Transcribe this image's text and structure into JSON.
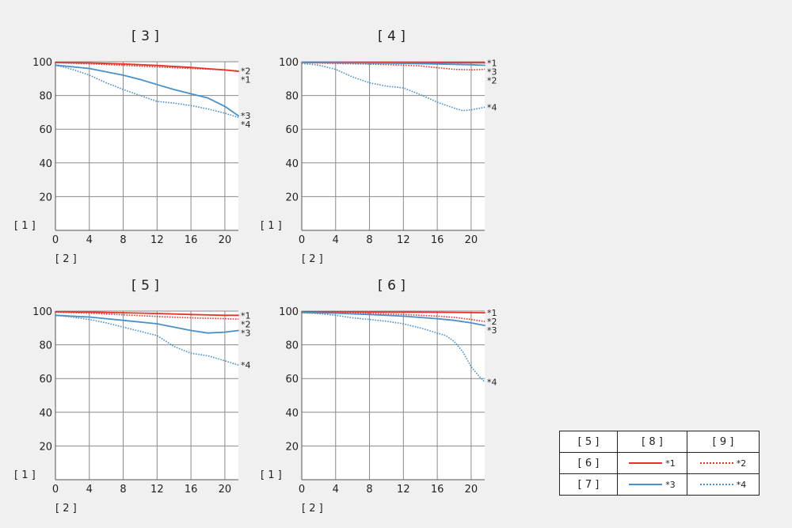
{
  "chart_data": [
    {
      "type": "line",
      "title": "[ 3 ]",
      "ylabel": "[ 1 ]",
      "xlabel": "[ 2 ]",
      "xlim": [
        0,
        21.6
      ],
      "ylim": [
        0,
        100
      ],
      "xticks": [
        "0",
        "4",
        "8",
        "12",
        "16",
        "20"
      ],
      "yticks": [
        "20",
        "40",
        "60",
        "80",
        "100"
      ],
      "grid": true,
      "series": [
        {
          "name": "*1",
          "style": "solid",
          "color": "#e8332b",
          "x": [
            0,
            4,
            8,
            12,
            16,
            20,
            21.6
          ],
          "y": [
            99.5,
            99.3,
            98.7,
            97.8,
            96.6,
            95.1,
            94.3
          ]
        },
        {
          "name": "*2",
          "style": "dotted",
          "color": "#e8332b",
          "x": [
            0,
            4,
            8,
            12,
            16,
            20,
            21.6
          ],
          "y": [
            99.5,
            98.8,
            97.9,
            96.9,
            96.0,
            95.2,
            94.6
          ]
        },
        {
          "name": "*3",
          "style": "solid",
          "color": "#4a90c8",
          "x": [
            0,
            2,
            4,
            6,
            8,
            10,
            12,
            14,
            16,
            18,
            20,
            21.6
          ],
          "y": [
            98.0,
            97.0,
            96.0,
            94.0,
            92.0,
            89.5,
            86.5,
            83.5,
            81.0,
            78.5,
            73.5,
            68.0
          ]
        },
        {
          "name": "*4",
          "style": "dotted",
          "color": "#4a90c8",
          "x": [
            0,
            2,
            4,
            6,
            8,
            10,
            12,
            14,
            16,
            18,
            20,
            21.6
          ],
          "y": [
            98.0,
            95.5,
            92.0,
            87.5,
            83.5,
            80.0,
            76.5,
            75.5,
            74.0,
            72.0,
            69.5,
            67.0
          ]
        }
      ]
    },
    {
      "type": "line",
      "title": "[ 4 ]",
      "ylabel": "[ 1 ]",
      "xlabel": "[ 2 ]",
      "xlim": [
        0,
        21.6
      ],
      "ylim": [
        0,
        100
      ],
      "xticks": [
        "0",
        "4",
        "8",
        "12",
        "16",
        "20"
      ],
      "yticks": [
        "20",
        "40",
        "60",
        "80",
        "100"
      ],
      "grid": true,
      "series": [
        {
          "name": "*1",
          "style": "solid",
          "color": "#e8332b",
          "x": [
            0,
            4,
            8,
            12,
            16,
            20,
            21.6
          ],
          "y": [
            99.6,
            99.6,
            99.6,
            99.5,
            99.5,
            99.4,
            99.4
          ]
        },
        {
          "name": "*2",
          "style": "dotted",
          "color": "#e8332b",
          "x": [
            0,
            4,
            8,
            12,
            14,
            16,
            18,
            20,
            21.6
          ],
          "y": [
            99.4,
            99.0,
            98.6,
            98.0,
            97.5,
            96.5,
            95.5,
            95.2,
            95.5
          ]
        },
        {
          "name": "*3",
          "style": "solid",
          "color": "#4a90c8",
          "x": [
            0,
            4,
            8,
            12,
            16,
            20,
            21.6
          ],
          "y": [
            99.6,
            99.4,
            99.2,
            99.0,
            98.7,
            98.2,
            97.9
          ]
        },
        {
          "name": "*4",
          "style": "dotted",
          "color": "#4a90c8",
          "x": [
            0,
            2,
            4,
            6,
            8,
            10,
            12,
            14,
            16,
            18,
            19,
            20,
            21.6
          ],
          "y": [
            99.0,
            98.0,
            95.5,
            91.0,
            87.5,
            85.5,
            84.5,
            80.5,
            76.0,
            72.5,
            71.0,
            71.5,
            73.0
          ]
        }
      ]
    },
    {
      "type": "line",
      "title": "[ 5 ]",
      "ylabel": "[ 1 ]",
      "xlabel": "[ 2 ]",
      "xlim": [
        0,
        21.6
      ],
      "ylim": [
        0,
        100
      ],
      "xticks": [
        "0",
        "4",
        "8",
        "12",
        "16",
        "20"
      ],
      "yticks": [
        "20",
        "40",
        "60",
        "80",
        "100"
      ],
      "grid": true,
      "series": [
        {
          "name": "*1",
          "style": "solid",
          "color": "#e8332b",
          "x": [
            0,
            4,
            8,
            12,
            16,
            20,
            21.6
          ],
          "y": [
            99.6,
            99.4,
            99.0,
            98.6,
            98.0,
            97.5,
            97.5
          ]
        },
        {
          "name": "*2",
          "style": "dotted",
          "color": "#e8332b",
          "x": [
            0,
            4,
            8,
            12,
            16,
            20,
            21.6
          ],
          "y": [
            99.4,
            98.8,
            97.8,
            96.8,
            96.0,
            95.5,
            95.2
          ]
        },
        {
          "name": "*3",
          "style": "solid",
          "color": "#4a90c8",
          "x": [
            0,
            4,
            8,
            12,
            14,
            16,
            18,
            20,
            21.6
          ],
          "y": [
            97.5,
            96.5,
            94.5,
            92.5,
            90.5,
            88.5,
            87.0,
            87.5,
            88.5
          ]
        },
        {
          "name": "*4",
          "style": "dotted",
          "color": "#4a90c8",
          "x": [
            0,
            2,
            4,
            6,
            8,
            10,
            12,
            14,
            16,
            18,
            20,
            21.6
          ],
          "y": [
            97.5,
            96.5,
            95.0,
            93.0,
            90.5,
            88.0,
            85.5,
            79.0,
            75.0,
            73.5,
            70.5,
            68.0
          ]
        }
      ]
    },
    {
      "type": "line",
      "title": "[ 6 ]",
      "ylabel": "[ 1 ]",
      "xlabel": "[ 2 ]",
      "xlim": [
        0,
        21.6
      ],
      "ylim": [
        0,
        100
      ],
      "xticks": [
        "0",
        "4",
        "8",
        "12",
        "16",
        "20"
      ],
      "yticks": [
        "20",
        "40",
        "60",
        "80",
        "100"
      ],
      "grid": true,
      "series": [
        {
          "name": "*1",
          "style": "solid",
          "color": "#e8332b",
          "x": [
            0,
            4,
            8,
            12,
            16,
            20,
            21.6
          ],
          "y": [
            99.6,
            99.6,
            99.5,
            99.4,
            99.3,
            99.1,
            99.0
          ]
        },
        {
          "name": "*2",
          "style": "dotted",
          "color": "#e8332b",
          "x": [
            0,
            4,
            8,
            12,
            16,
            18,
            20,
            21.6
          ],
          "y": [
            99.5,
            99.2,
            98.7,
            98.0,
            97.0,
            96.3,
            95.0,
            93.8
          ]
        },
        {
          "name": "*3",
          "style": "solid",
          "color": "#4a90c8",
          "x": [
            0,
            4,
            8,
            12,
            16,
            18,
            20,
            21.6
          ],
          "y": [
            99.2,
            98.8,
            98.0,
            97.0,
            95.5,
            94.5,
            93.0,
            91.5
          ]
        },
        {
          "name": "*4",
          "style": "dotted",
          "color": "#4a90c8",
          "x": [
            0,
            2,
            4,
            6,
            8,
            10,
            12,
            14,
            16,
            17,
            18,
            19,
            20,
            21,
            21.6
          ],
          "y": [
            99.0,
            98.5,
            97.5,
            96.0,
            95.0,
            94.0,
            92.5,
            90.0,
            87.0,
            85.5,
            82.0,
            76.0,
            67.0,
            61.0,
            58.0
          ]
        }
      ]
    }
  ],
  "legend_table": {
    "header": [
      "[ 5 ]",
      "[ 8 ]",
      "[ 9 ]"
    ],
    "rows": [
      {
        "label": "[ 6 ]",
        "left": "*1",
        "right": "*2"
      },
      {
        "label": "[ 7 ]",
        "left": "*3",
        "right": "*4"
      }
    ]
  }
}
